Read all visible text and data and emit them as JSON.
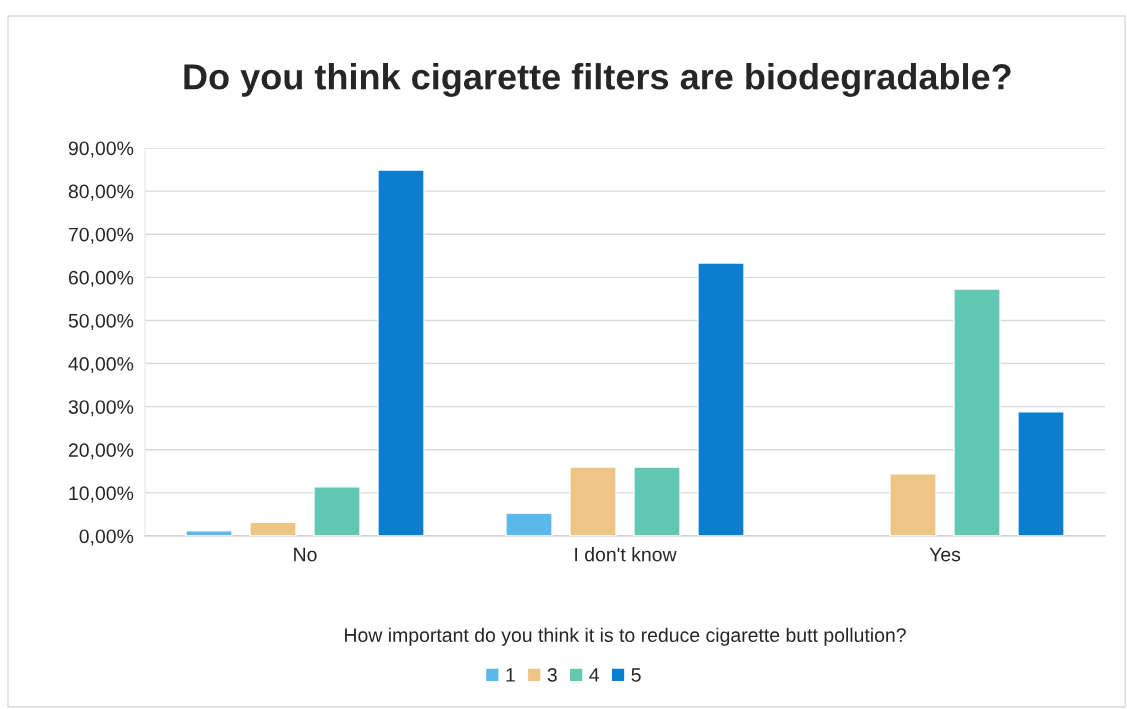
{
  "chart_data": {
    "type": "bar",
    "title": "Do you think cigarette filters are biodegradable?",
    "xlabel": "How important do you think it is to reduce cigarette butt pollution?",
    "categories": [
      "No",
      "I don't know",
      "Yes"
    ],
    "series": [
      {
        "name": "1",
        "color": "#5bb8ea",
        "values": [
          1.2,
          5.3,
          null
        ]
      },
      {
        "name": "3",
        "color": "#eec585",
        "values": [
          3.2,
          16.0,
          14.4
        ]
      },
      {
        "name": "4",
        "color": "#62c8b4",
        "values": [
          11.4,
          16.0,
          57.3
        ]
      },
      {
        "name": "5",
        "color": "#0a7fcf",
        "values": [
          84.9,
          63.3,
          28.8
        ]
      }
    ],
    "ylim": [
      0,
      90
    ],
    "yticks": [
      {
        "value": 0,
        "label": "0,00%"
      },
      {
        "value": 10,
        "label": "10,00%"
      },
      {
        "value": 20,
        "label": "20,00%"
      },
      {
        "value": 30,
        "label": "30,00%"
      },
      {
        "value": 40,
        "label": "40,00%"
      },
      {
        "value": 50,
        "label": "50,00%"
      },
      {
        "value": 60,
        "label": "60,00%"
      },
      {
        "value": 70,
        "label": "70,00%"
      },
      {
        "value": 80,
        "label": "80,00%"
      },
      {
        "value": 90,
        "label": "90,00%"
      }
    ],
    "grid": "y",
    "legend": "bottom"
  }
}
